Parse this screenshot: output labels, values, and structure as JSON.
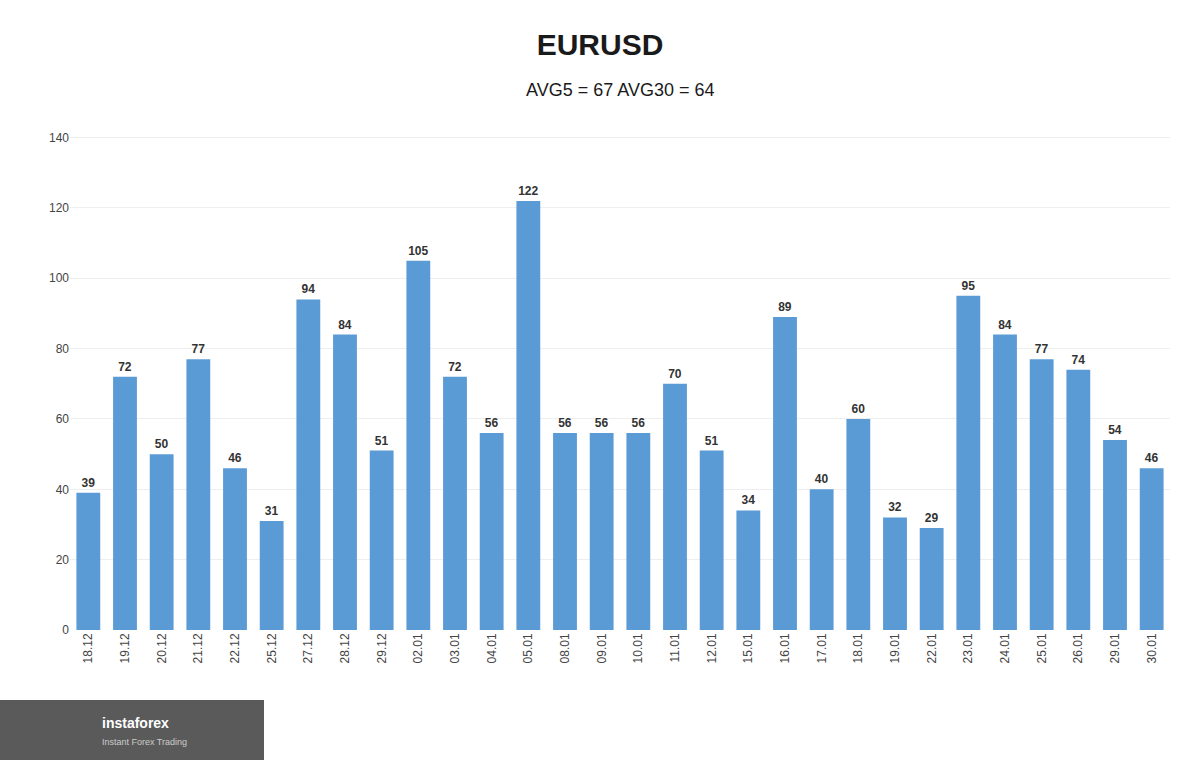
{
  "chart_data": {
    "type": "bar",
    "title": "EURUSD",
    "subtitle": "AVG5 = 67 AVG30 = 64",
    "categories": [
      "18.12",
      "19.12",
      "20.12",
      "21.12",
      "22.12",
      "25.12",
      "27.12",
      "28.12",
      "29.12",
      "02.01",
      "03.01",
      "04.01",
      "05.01",
      "08.01",
      "09.01",
      "10.01",
      "11.01",
      "12.01",
      "15.01",
      "16.01",
      "17.01",
      "18.01",
      "19.01",
      "22.01",
      "23.01",
      "24.01",
      "25.01",
      "26.01",
      "29.01",
      "30.01"
    ],
    "values": [
      39,
      72,
      50,
      77,
      46,
      31,
      94,
      84,
      51,
      105,
      72,
      56,
      122,
      56,
      56,
      56,
      70,
      51,
      34,
      89,
      40,
      60,
      32,
      29,
      95,
      84,
      77,
      74,
      54,
      46
    ],
    "color": "#5B9BD5",
    "ylim": [
      0,
      145
    ],
    "yticks": [
      0,
      20,
      40,
      60,
      80,
      100,
      120,
      140
    ],
    "grid": true,
    "data_labels": true,
    "annotations": [
      "instaforex",
      "Instant Forex Trading"
    ]
  }
}
